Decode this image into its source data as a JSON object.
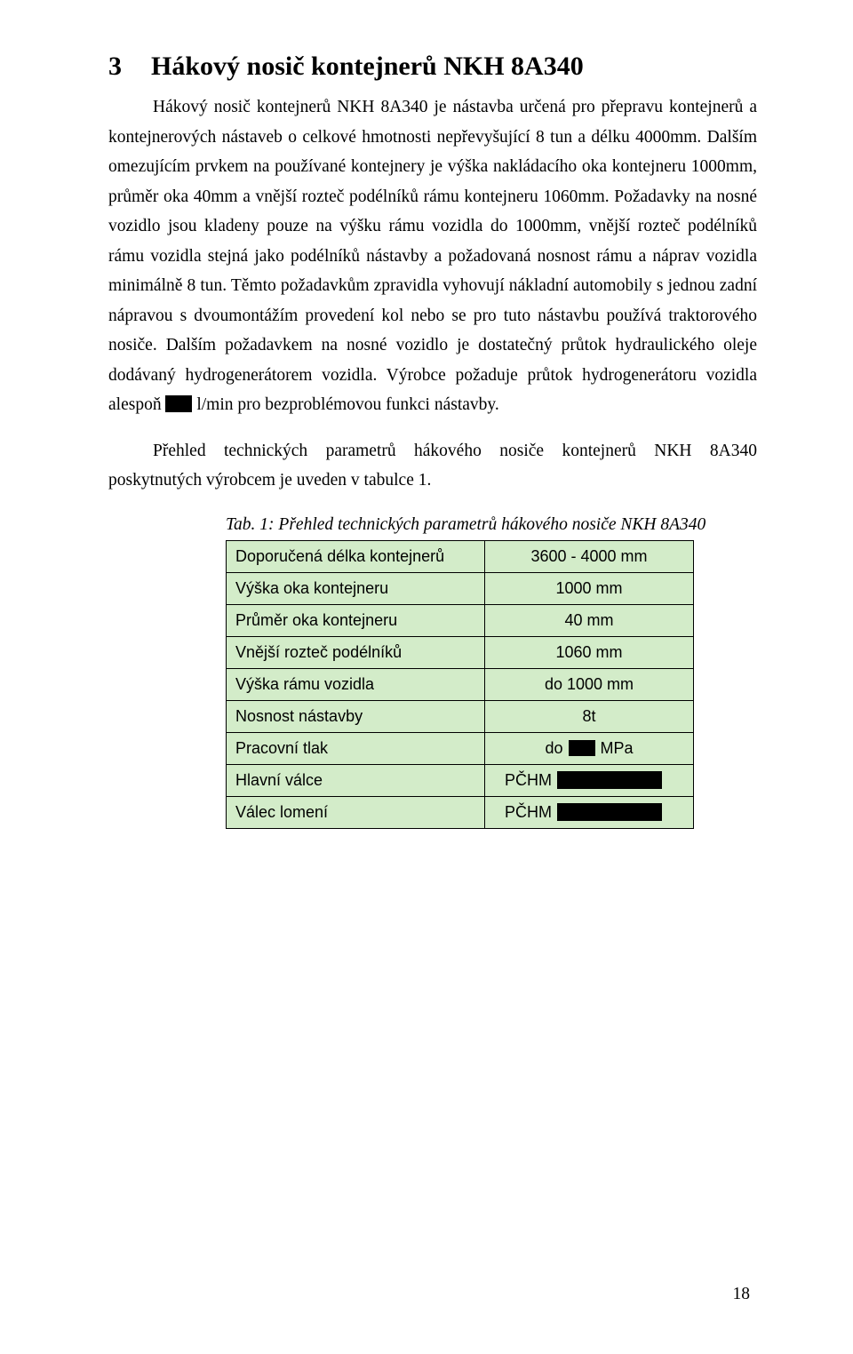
{
  "heading": {
    "number": "3",
    "title": "Hákový nosič kontejnerů NKH 8A340"
  },
  "paragraphs": {
    "p1a": "Hákový nosič kontejnerů NKH 8A340 je nástavba určená pro přepravu kontejnerů a kontejnerových nástaveb o celkové hmotnosti nepřevyšující 8 tun a délku 4000mm. Dalším omezujícím prvkem na používané kontejnery je výška nakládacího oka kontejneru 1000mm, průměr oka 40mm a vnější rozteč podélníků rámu kontejneru 1060mm. Požadavky na nosné vozidlo jsou kladeny pouze na výšku rámu vozidla do 1000mm, vnější rozteč podélníků rámu vozidla stejná jako podélníků nástavby a požadovaná nosnost rámu a náprav vozidla minimálně 8 tun. Těmto požadavkům zpravidla vyhovují nákladní automobily s jednou zadní nápravou s dvoumontážím provedení kol nebo se pro tuto nástavbu používá traktorového nosiče. Dalším požadavkem na nosné vozidlo je dostatečný průtok hydraulického oleje dodávaný hydrogenerátorem vozidla. Výrobce požaduje průtok hydrogenerátoru vozidla alespoň ",
    "p1b": " l/min pro bezproblémovou funkci nástavby.",
    "p2": "Přehled technických parametrů hákového nosiče kontejnerů NKH 8A340 poskytnutých výrobcem je uveden v tabulce 1."
  },
  "table": {
    "caption": "Tab. 1: Přehled technických parametrů hákového nosiče NKH 8A340",
    "rows": [
      {
        "label": "Doporučená délka kontejnerů",
        "value": "3600 - 4000 mm",
        "type": "plain"
      },
      {
        "label": "Výška oka kontejneru",
        "value": "1000 mm",
        "type": "plain"
      },
      {
        "label": "Průměr oka kontejneru",
        "value": "40 mm",
        "type": "plain"
      },
      {
        "label": "Vnější rozteč podélníků",
        "value": "1060 mm",
        "type": "plain"
      },
      {
        "label": "Výška rámu vozidla",
        "value": "do 1000 mm",
        "type": "plain"
      },
      {
        "label": "Nosnost nástavby",
        "value": "8t",
        "type": "plain"
      },
      {
        "label": "Pracovní tlak",
        "prefix": "do ",
        "suffix": " MPa",
        "type": "redact-mid",
        "redact_w": 30,
        "redact_h": 18
      },
      {
        "label": "Hlavní válce",
        "prefix": "PČHM ",
        "type": "redact-right",
        "redact_w": 118,
        "redact_h": 20
      },
      {
        "label": "Válec lomení",
        "prefix": "PČHM ",
        "type": "redact-right",
        "redact_w": 118,
        "redact_h": 20
      }
    ],
    "colors": {
      "cell_bg": "#d3ecc9",
      "border": "#000000"
    }
  },
  "inline_redact": {
    "w": 30,
    "h": 19
  },
  "page_number": "18"
}
